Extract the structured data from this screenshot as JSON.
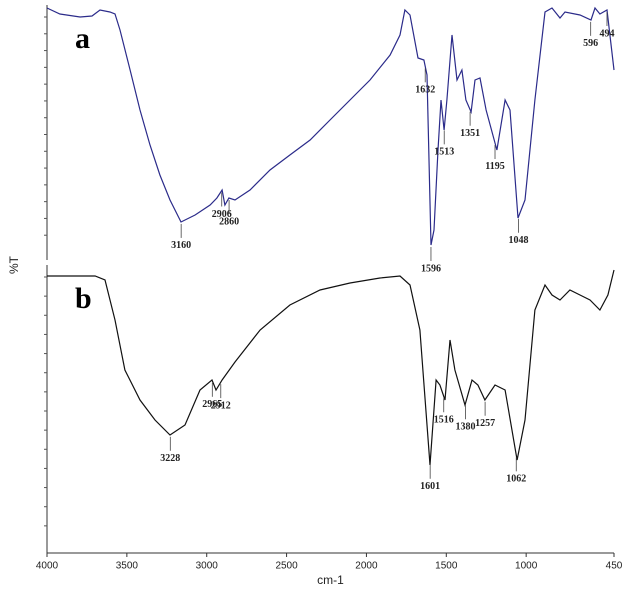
{
  "chart_data": [
    {
      "type": "line",
      "panel_label": "a",
      "ylabel": "%T",
      "color": "#2b2b8a",
      "xlim": [
        4000,
        450
      ],
      "ylim": [
        0,
        100
      ],
      "x": [
        4000,
        3919,
        3793,
        3718,
        3668,
        3606,
        3574,
        3543,
        3480,
        3418,
        3355,
        3293,
        3230,
        3161,
        3073,
        2979,
        2936,
        2904,
        2886,
        2861,
        2823,
        2729,
        2604,
        2479,
        2353,
        2228,
        2103,
        1978,
        1852,
        1790,
        1759,
        1727,
        1677,
        1640,
        1621,
        1596,
        1577,
        1552,
        1533,
        1514,
        1496,
        1464,
        1433,
        1402,
        1377,
        1345,
        1320,
        1289,
        1251,
        1183,
        1132,
        1101,
        1051,
        1007,
        945,
        882,
        838,
        788,
        757,
        663,
        594,
        569,
        538,
        494,
        450
      ],
      "values": [
        98.8,
        96.4,
        95.2,
        95.6,
        98,
        97.2,
        96.4,
        90,
        74,
        58,
        44,
        32,
        22,
        13.2,
        16,
        20,
        22.8,
        26,
        20,
        22.8,
        22,
        26,
        34,
        40,
        46,
        54,
        62,
        70,
        80,
        88,
        98,
        96,
        78.8,
        78,
        72,
        4,
        10,
        42,
        62,
        50,
        62,
        88,
        70,
        74,
        62,
        57.2,
        70,
        70.8,
        58,
        42,
        62,
        58,
        14.8,
        22,
        62,
        97.2,
        98.8,
        94.8,
        97.2,
        96,
        94,
        98.8,
        96.4,
        98,
        74
      ],
      "peaks": [
        3160,
        2906,
        2860,
        1632,
        1596,
        1513,
        1351,
        1195,
        1048,
        596,
        494
      ]
    },
    {
      "type": "line",
      "panel_label": "b",
      "xlabel": "cm-1",
      "color": "#111111",
      "xlim": [
        4000,
        450
      ],
      "ylim": [
        0,
        115.2
      ],
      "xticks": [
        4000,
        3500,
        3000,
        2500,
        2000,
        1500,
        1000,
        450
      ],
      "x": [
        4000,
        3699,
        3637,
        3574,
        3512,
        3418,
        3324,
        3230,
        3136,
        3042,
        2967,
        2942,
        2904,
        2823,
        2666,
        2479,
        2291,
        2103,
        1915,
        1790,
        1727,
        1665,
        1602,
        1564,
        1540,
        1508,
        1477,
        1446,
        1383,
        1339,
        1302,
        1258,
        1195,
        1132,
        1057,
        1007,
        945,
        882,
        838,
        788,
        726,
        663,
        600,
        538,
        488,
        450
      ],
      "values": [
        110.8,
        110.8,
        109.2,
        93.2,
        73.2,
        61.2,
        53.2,
        47.2,
        51.2,
        65.2,
        69.2,
        65.2,
        69.2,
        76.4,
        89.2,
        99.2,
        105.2,
        108,
        110,
        110.8,
        107.2,
        89.2,
        35.2,
        69.2,
        67.2,
        61.2,
        85.2,
        73.2,
        59.2,
        69.2,
        67.2,
        61.2,
        67.2,
        65.2,
        37.2,
        53.2,
        97.2,
        107.2,
        103.2,
        101.2,
        105.2,
        103.2,
        101.2,
        97.2,
        103.2,
        113.2
      ],
      "peaks": [
        3228,
        2965,
        2912,
        1601,
        1516,
        1380,
        1257,
        1062
      ]
    }
  ]
}
